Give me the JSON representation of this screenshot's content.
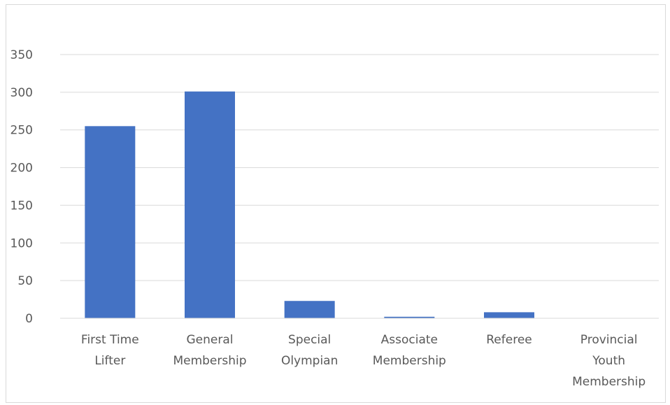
{
  "chart_data": {
    "type": "bar",
    "title": "",
    "xlabel": "",
    "ylabel": "",
    "ylim": [
      0,
      350
    ],
    "y_ticks": [
      0,
      50,
      100,
      150,
      200,
      250,
      300,
      350
    ],
    "grid": true,
    "categories": [
      [
        "First Time",
        "Lifter"
      ],
      [
        "General",
        "Membership"
      ],
      [
        "Special",
        "Olympian"
      ],
      [
        "Associate",
        "Membership"
      ],
      [
        "Referee"
      ],
      [
        "Provincial",
        "Youth",
        "Membership"
      ]
    ],
    "values": [
      255,
      301,
      23,
      2,
      8,
      0
    ],
    "bar_color": "#4472C4",
    "grid_color": "#d9d9d9",
    "axis_color": "#d9d9d9"
  }
}
